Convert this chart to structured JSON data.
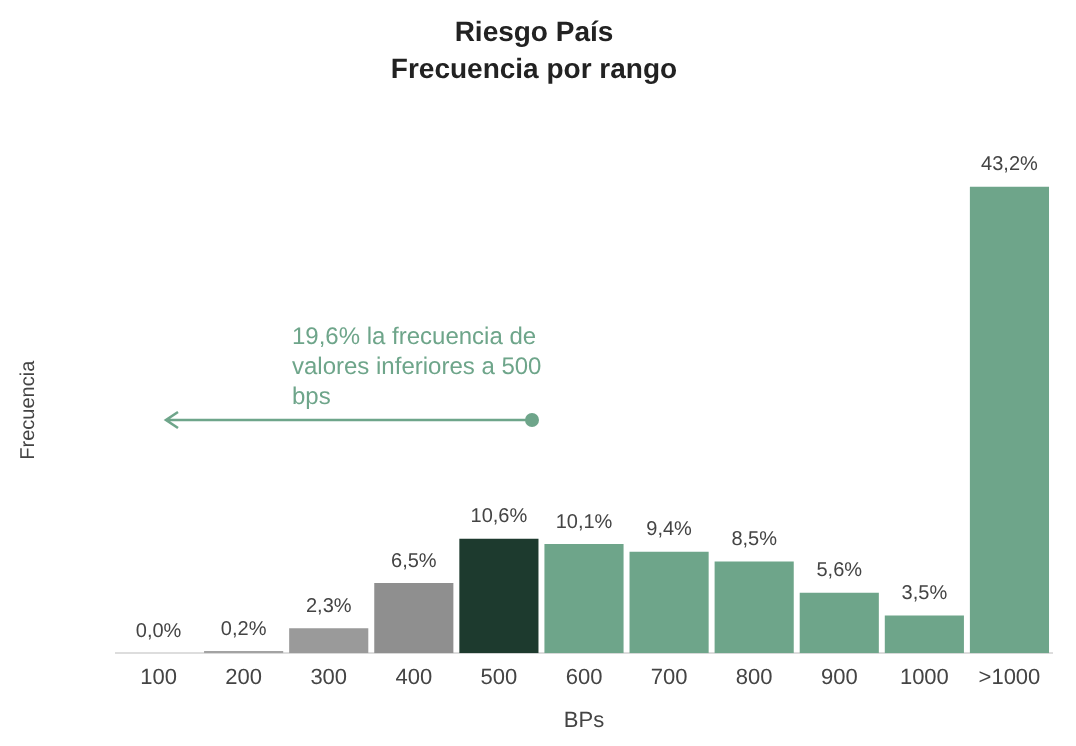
{
  "chart_data": {
    "type": "bar",
    "title": "Riesgo País",
    "subtitle": "Frecuencia por rango",
    "xlabel": "BPs",
    "ylabel": "Frecuencia",
    "categories": [
      "100",
      "200",
      "300",
      "400",
      "500",
      "600",
      "700",
      "800",
      "900",
      "1000",
      ">1000"
    ],
    "values": [
      0.0,
      0.2,
      2.3,
      6.5,
      10.6,
      10.1,
      9.4,
      8.5,
      5.6,
      3.5,
      43.2
    ],
    "value_labels": [
      "0,0%",
      "0,2%",
      "2,3%",
      "6,5%",
      "10,6%",
      "10,1%",
      "9,4%",
      "8,5%",
      "5,6%",
      "3,5%",
      "43,2%"
    ],
    "colors": [
      "#a3a3a3",
      "#a3a3a3",
      "#9a9a9a",
      "#8f8f8f",
      "#1d3a2e",
      "#6ea58a",
      "#6ea58a",
      "#6ea58a",
      "#6ea58a",
      "#6ea58a",
      "#6ea58a"
    ],
    "annotations": [
      "19,6% la frecuencia de valores inferiores a 500 bps"
    ],
    "grid": false,
    "legend": false
  }
}
